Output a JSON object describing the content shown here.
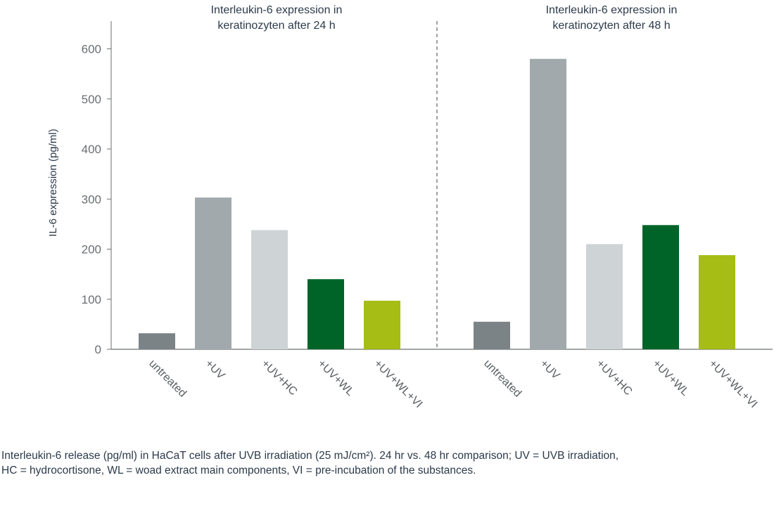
{
  "chart_data": {
    "type": "bar",
    "ylabel": "IL-6 expression (pg/ml)",
    "ylim": [
      0,
      650
    ],
    "yticks": [
      0,
      100,
      200,
      300,
      400,
      500,
      600
    ],
    "grid": false,
    "panels": [
      {
        "title_lines": [
          "Interleukin-6 expression in",
          "keratinozyten after 24 h"
        ],
        "categories": [
          "untreated",
          "+UV",
          "+UV+HC",
          "+UV+WL",
          "+UV+WL+VI"
        ],
        "values": [
          32,
          303,
          238,
          140,
          97
        ]
      },
      {
        "title_lines": [
          "Interleukin-6 expression in",
          "keratinozyten after 48 h"
        ],
        "categories": [
          "untreated",
          "+UV",
          "+UV+HC",
          "+UV+WL",
          "+UV+WL+VI"
        ],
        "values": [
          55,
          580,
          210,
          248,
          188
        ]
      }
    ],
    "colors": [
      "#7b8386",
      "#a2a9ac",
      "#ced3d5",
      "#006428",
      "#a5bd14"
    ],
    "axis_color": "#6b6f72",
    "divider_color": "#6b6f72"
  },
  "caption": {
    "line1": "Interleukin-6 release (pg/ml) in HaCaT cells after UVB irradiation (25 mJ/cm²). 24 hr vs. 48 hr comparison; UV = UVB irradiation,",
    "line2": "HC = hydrocortisone, WL = woad extract main components, VI = pre-incubation of the substances."
  }
}
